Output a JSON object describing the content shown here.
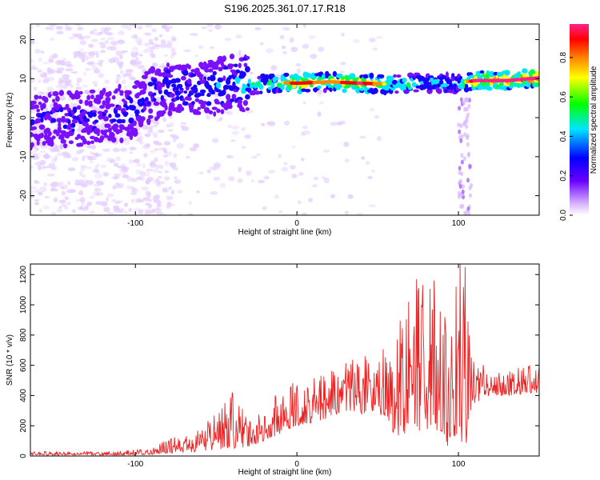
{
  "page": {
    "title": "S196.2025.361.07.17.R18"
  },
  "colors": {
    "background": "#ffffff",
    "axes": "#000000",
    "snr_line": "#ee2222",
    "colormap": [
      "#ffffff",
      "#d9b3ff",
      "#6a00ff",
      "#0000ff",
      "#00e5ff",
      "#00ff00",
      "#ffff00",
      "#ff8800",
      "#ff0000",
      "#ff2288"
    ]
  },
  "chart_data": [
    {
      "type": "heatmap",
      "title": "S196.2025.361.07.17.R18",
      "xlabel": "Height of straight line (km)",
      "ylabel": "Frequency (Hz)",
      "xlim": [
        -165,
        150
      ],
      "ylim": [
        -25,
        24
      ],
      "xticks": [
        -100,
        0,
        100
      ],
      "yticks": [
        -20,
        -10,
        0,
        10,
        20
      ],
      "colorbar": {
        "label": "Normalized spectral amplitude",
        "range": [
          0,
          0.97
        ],
        "ticks": [
          "0.0",
          "0.2",
          "0.4",
          "0.6",
          "0.8"
        ],
        "placement": "right"
      },
      "dominant_frequency_track": {
        "x": [
          -165,
          -140,
          -120,
          -100,
          -90,
          -80,
          -60,
          -40,
          -30,
          -20,
          -10,
          0,
          20,
          40,
          60,
          80,
          100,
          110,
          130,
          150
        ],
        "y": [
          -1,
          -0.5,
          0,
          2,
          6,
          8,
          7,
          9,
          8.5,
          8.5,
          9,
          8.8,
          9.2,
          8.8,
          8.6,
          9,
          8.8,
          9.5,
          9.5,
          10.2
        ],
        "amplitude": [
          0.25,
          0.25,
          0.25,
          0.3,
          0.3,
          0.3,
          0.3,
          0.35,
          0.5,
          0.55,
          0.65,
          0.9,
          0.75,
          0.95,
          0.6,
          0.5,
          0.45,
          0.95,
          0.95,
          0.95
        ]
      },
      "grid": false
    },
    {
      "type": "line",
      "xlabel": "Height of straight line (km)",
      "ylabel": "SNR (10 * v/v)",
      "xlim": [
        -165,
        150
      ],
      "ylim": [
        0,
        1270
      ],
      "xticks": [
        -100,
        0,
        100
      ],
      "yticks": [
        0,
        200,
        400,
        600,
        800,
        1000,
        1200
      ],
      "series": [
        {
          "envelope_x": [
            -165,
            -120,
            -100,
            -90,
            -80,
            -70,
            -60,
            -50,
            -40,
            -30,
            -20,
            -10,
            0,
            10,
            20,
            30,
            40,
            50,
            60,
            70,
            80,
            90,
            95,
            100,
            104,
            110,
            120,
            130,
            140,
            150
          ],
          "envelope_low": [
            5,
            5,
            5,
            10,
            20,
            20,
            30,
            40,
            50,
            60,
            100,
            150,
            200,
            220,
            250,
            300,
            280,
            300,
            150,
            100,
            150,
            100,
            50,
            150,
            30,
            350,
            400,
            400,
            410,
            420
          ],
          "envelope_high": [
            30,
            30,
            40,
            50,
            130,
            120,
            200,
            300,
            420,
            250,
            300,
            480,
            490,
            520,
            550,
            640,
            700,
            680,
            770,
            1100,
            1160,
            1080,
            950,
            1270,
            1250,
            650,
            580,
            560,
            600,
            620
          ],
          "peaks": [
            [
              -40,
              420
            ],
            [
              62,
              770
            ],
            [
              69,
              1020
            ],
            [
              74,
              1170
            ],
            [
              85,
              1160
            ],
            [
              101,
              1270
            ],
            [
              104,
              1250
            ]
          ]
        }
      ],
      "grid": false
    }
  ]
}
